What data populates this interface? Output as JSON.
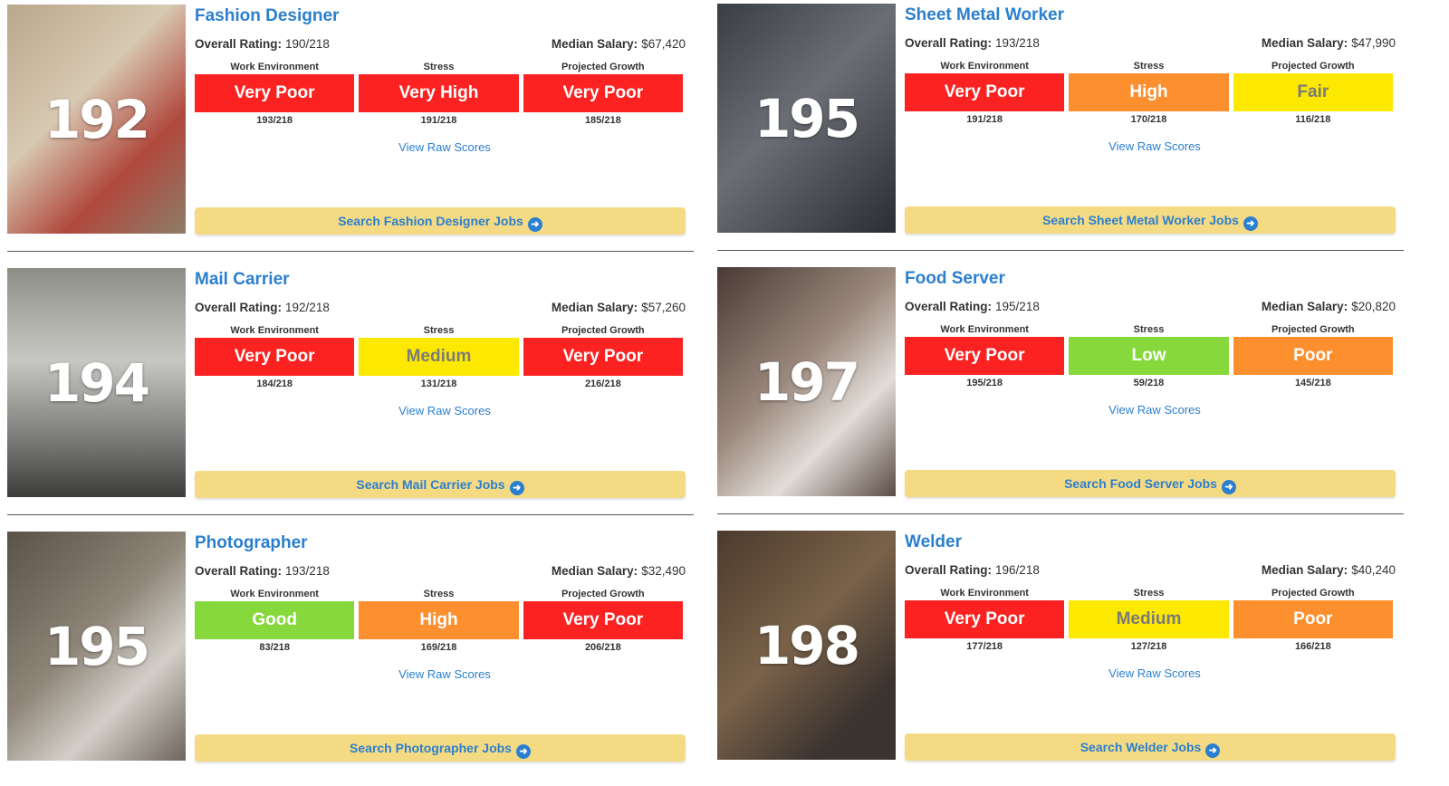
{
  "labels": {
    "overall": "Overall Rating:",
    "salary": "Median Salary:",
    "work": "Work Environment",
    "stress": "Stress",
    "growth": "Projected Growth",
    "raw": "View Raw Scores",
    "arrow_icon": "arrow-right-circle-icon"
  },
  "colors": {
    "Very Poor": "#fd2222",
    "Very High": "#fd2222",
    "High": "#fd8f2f",
    "Poor": "#fd8f2f",
    "Medium": "#fde800",
    "Fair": "#fde800",
    "Low": "#86d83c",
    "Good": "#86d83c",
    "link": "#2b7fcf",
    "button": "#f5da84"
  },
  "jobs": [
    {
      "rank": "192",
      "title": "Fashion Designer",
      "overall": "190/218",
      "salary": "$67,420",
      "work": "Very Poor",
      "work_score": "193/218",
      "stress": "Very High",
      "stress_score": "191/218",
      "growth": "Very Poor",
      "growth_score": "185/218",
      "search": "Search Fashion Designer Jobs"
    },
    {
      "rank": "195",
      "title": "Sheet Metal Worker",
      "overall": "193/218",
      "salary": "$47,990",
      "work": "Very Poor",
      "work_score": "191/218",
      "stress": "High",
      "stress_score": "170/218",
      "growth": "Fair",
      "growth_score": "116/218",
      "search": "Search Sheet Metal Worker Jobs"
    },
    {
      "rank": "194",
      "title": "Mail Carrier",
      "overall": "192/218",
      "salary": "$57,260",
      "work": "Very Poor",
      "work_score": "184/218",
      "stress": "Medium",
      "stress_score": "131/218",
      "growth": "Very Poor",
      "growth_score": "216/218",
      "search": "Search Mail Carrier Jobs"
    },
    {
      "rank": "197",
      "title": "Food Server",
      "overall": "195/218",
      "salary": "$20,820",
      "work": "Very Poor",
      "work_score": "195/218",
      "stress": "Low",
      "stress_score": "59/218",
      "growth": "Poor",
      "growth_score": "145/218",
      "search": "Search Food Server Jobs"
    },
    {
      "rank": "195",
      "title": "Photographer",
      "overall": "193/218",
      "salary": "$32,490",
      "work": "Good",
      "work_score": "83/218",
      "stress": "High",
      "stress_score": "169/218",
      "growth": "Very Poor",
      "growth_score": "206/218",
      "search": "Search Photographer Jobs"
    },
    {
      "rank": "198",
      "title": "Welder",
      "overall": "196/218",
      "salary": "$40,240",
      "work": "Very Poor",
      "work_score": "177/218",
      "stress": "Medium",
      "stress_score": "127/218",
      "growth": "Poor",
      "growth_score": "166/218",
      "search": "Search Welder Jobs"
    }
  ]
}
